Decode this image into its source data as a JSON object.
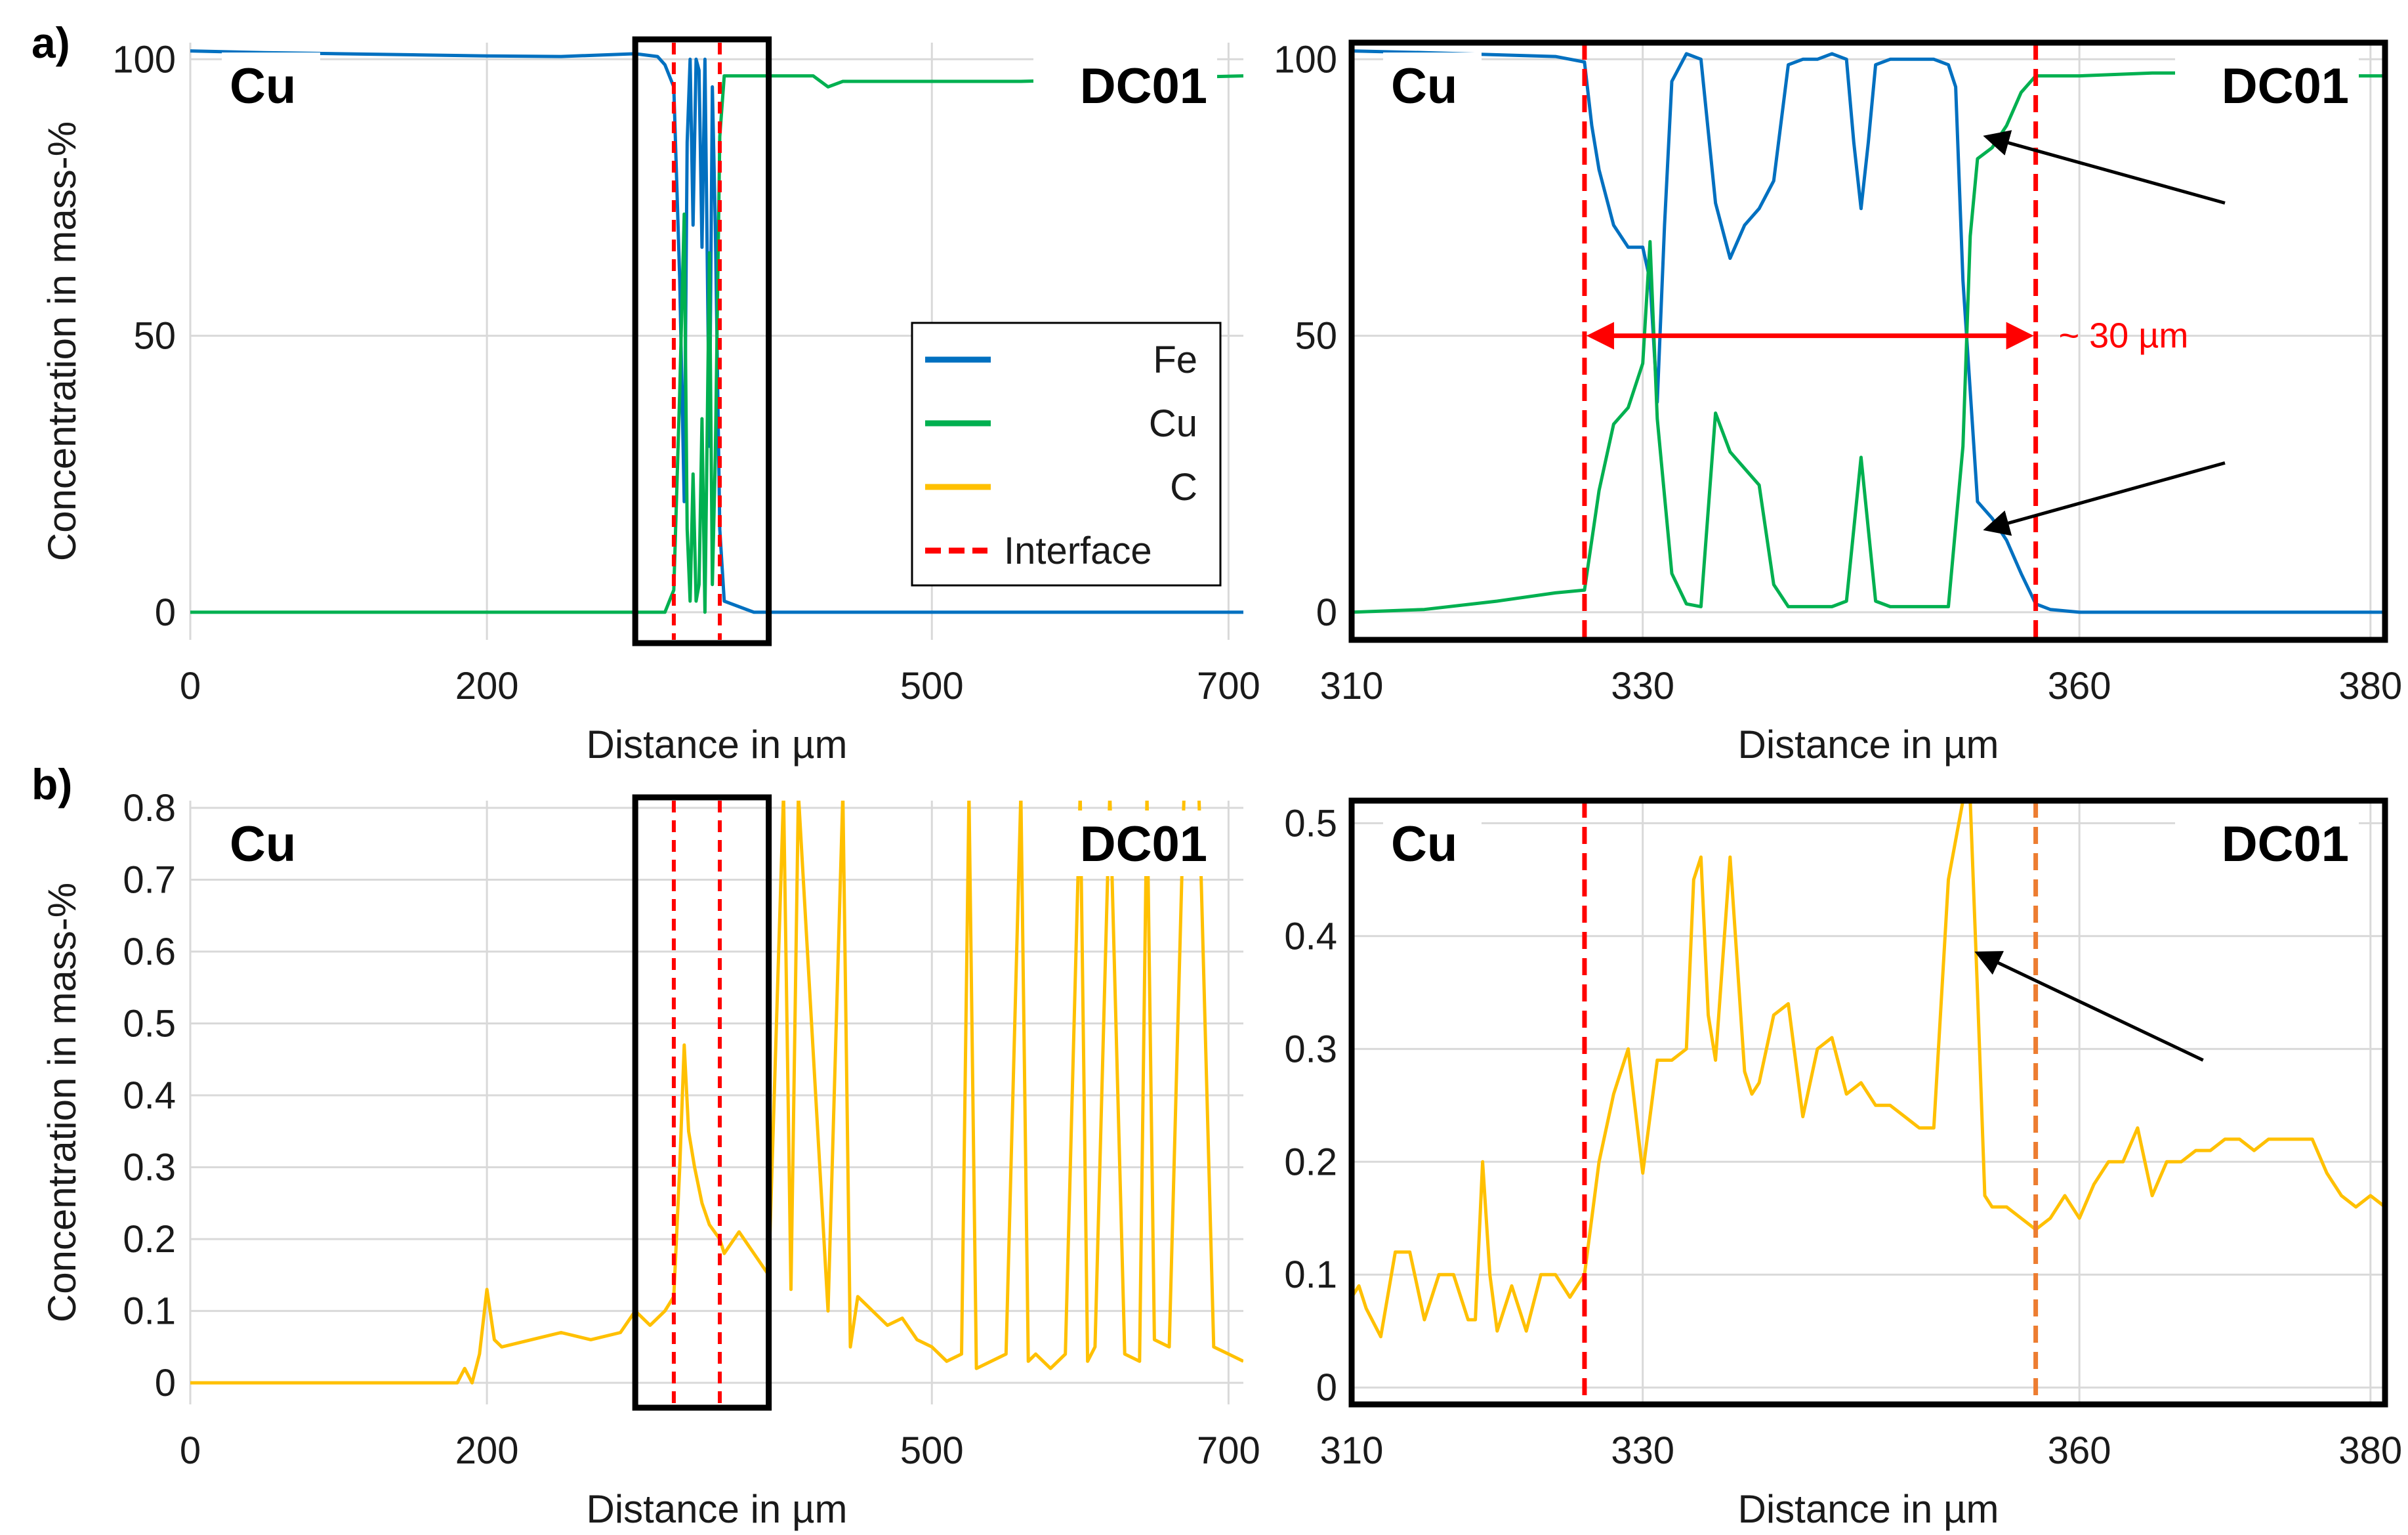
{
  "figure": {
    "panel_a_label": "a)",
    "panel_b_label": "b)",
    "y_label": "Concentration in mass-%",
    "x_label": "Distance in µm",
    "left_region_label": "Cu",
    "right_region_label": "DC01",
    "width_annotation": "~ 30 µm",
    "colors": {
      "Fe": "#0070c0",
      "Cu": "#00b050",
      "C": "#ffc000",
      "Interface": "#ff0000",
      "Interface2": "#ed7d31"
    }
  },
  "chart_data": [
    {
      "id": "a_left",
      "type": "line",
      "xlim": [
        0,
        710
      ],
      "ylim": [
        -5,
        103
      ],
      "xticks": [
        0,
        200,
        500,
        700
      ],
      "xtick_labels": [
        "0",
        "200",
        "500",
        "700"
      ],
      "yticks": [
        0,
        50,
        100
      ],
      "ytick_labels": [
        "0",
        "50",
        "100"
      ],
      "xlabel": "Distance in µm",
      "ylabel": "Concentration in mass-%",
      "legend": {
        "position": "center-right",
        "entries": [
          "Fe",
          "Cu",
          "C",
          "Interface"
        ]
      },
      "interfaces": [
        326,
        357
      ],
      "zoom_box": [
        300,
        390
      ],
      "series": [
        {
          "name": "Fe",
          "x": [
            0,
            50,
            100,
            150,
            200,
            250,
            300,
            315,
            320,
            326,
            330,
            333,
            335,
            337,
            339,
            341,
            343,
            345,
            347,
            350,
            352,
            354,
            357,
            360,
            380,
            500,
            710
          ],
          "y": [
            101.5,
            101.2,
            101.0,
            100.8,
            100.6,
            100.5,
            101.0,
            100.5,
            99.0,
            95,
            60,
            20,
            85,
            100,
            70,
            100,
            98,
            66,
            100,
            30,
            95,
            70,
            15,
            2,
            0,
            0,
            0
          ]
        },
        {
          "name": "Cu",
          "x": [
            0,
            200,
            320,
            326,
            330,
            333,
            335,
            337,
            339,
            341,
            343,
            345,
            347,
            350,
            352,
            354,
            357,
            360,
            380,
            420,
            430,
            440,
            500,
            560,
            710
          ],
          "y": [
            0,
            0,
            0,
            4,
            40,
            72,
            15,
            2,
            25,
            2,
            5,
            35,
            0,
            65,
            5,
            28,
            86,
            97,
            97,
            97,
            95,
            96,
            96,
            96,
            97
          ]
        }
      ]
    },
    {
      "id": "a_right",
      "type": "line",
      "xlim": [
        310,
        381
      ],
      "ylim": [
        -5,
        103
      ],
      "xticks": [
        310,
        330,
        360,
        380
      ],
      "xtick_labels": [
        "310",
        "330",
        "360",
        "380"
      ],
      "yticks": [
        0,
        50,
        100
      ],
      "ytick_labels": [
        "0",
        "50",
        "100"
      ],
      "xlabel": "Distance in µm",
      "interfaces": [
        326,
        357
      ],
      "series": [
        {
          "name": "Fe",
          "x": [
            310,
            315,
            320,
            324,
            326,
            326.5,
            327,
            328,
            329,
            330,
            330.5,
            331,
            331.5,
            332,
            333,
            334,
            335,
            336,
            337,
            338,
            339,
            340,
            341,
            342,
            343,
            344,
            344.5,
            345,
            345.5,
            346,
            347,
            348,
            349,
            350,
            351,
            351.5,
            352,
            352.5,
            353,
            354,
            355,
            356,
            357,
            358,
            360,
            370,
            381
          ],
          "y": [
            101.5,
            101.2,
            100.8,
            100.5,
            99.5,
            88,
            80,
            70,
            66,
            66,
            60,
            38,
            70,
            96,
            101,
            100,
            74,
            64,
            70,
            73,
            78,
            99,
            100,
            100,
            101,
            100,
            85,
            73,
            85,
            99,
            100,
            100,
            100,
            100,
            99,
            95,
            60,
            40,
            20,
            17,
            13,
            7,
            1.5,
            0.5,
            0,
            0,
            0
          ]
        },
        {
          "name": "Cu",
          "x": [
            310,
            315,
            320,
            324,
            326,
            327,
            328,
            329,
            330,
            330.5,
            331,
            332,
            333,
            334,
            335,
            336,
            337,
            338,
            339,
            340,
            341,
            342,
            343,
            344,
            344.5,
            345,
            345.5,
            346,
            347,
            348,
            349,
            350,
            351,
            352,
            352.5,
            353,
            354,
            355,
            356,
            357,
            358,
            360,
            365,
            370,
            375,
            381
          ],
          "y": [
            0,
            0.5,
            2,
            3.5,
            4,
            22,
            34,
            37,
            45,
            67,
            35,
            7,
            1.5,
            1,
            36,
            29,
            26,
            23,
            5,
            1,
            1,
            1,
            1,
            2,
            15,
            28,
            15,
            2,
            1,
            1,
            1,
            1,
            1,
            30,
            68,
            82,
            84,
            88,
            94,
            97,
            97,
            97,
            97.5,
            97.5,
            97,
            97
          ]
        }
      ]
    },
    {
      "id": "b_left",
      "type": "line",
      "xlim": [
        0,
        710
      ],
      "ylim": [
        -0.03,
        0.81
      ],
      "xticks": [
        0,
        200,
        500,
        700
      ],
      "xtick_labels": [
        "0",
        "200",
        "500",
        "700"
      ],
      "yticks": [
        0,
        0.1,
        0.2,
        0.3,
        0.4,
        0.5,
        0.6,
        0.7,
        0.8
      ],
      "ytick_labels": [
        "0",
        "0.1",
        "0.2",
        "0.3",
        "0.4",
        "0.5",
        "0.6",
        "0.7",
        "0.8"
      ],
      "xlabel": "Distance in µm",
      "ylabel": "Concentration in mass-%",
      "interfaces": [
        326,
        357
      ],
      "zoom_box": [
        300,
        390
      ],
      "series": [
        {
          "name": "C",
          "x": [
            0,
            180,
            185,
            190,
            195,
            200,
            205,
            210,
            230,
            250,
            270,
            290,
            300,
            310,
            320,
            326,
            330,
            333,
            336,
            340,
            345,
            350,
            357,
            360,
            370,
            380,
            390,
            400,
            405,
            410,
            430,
            440,
            445,
            450,
            470,
            480,
            490,
            500,
            510,
            520,
            525,
            530,
            540,
            550,
            560,
            565,
            570,
            580,
            590,
            600,
            605,
            610,
            620,
            630,
            640,
            645,
            650,
            660,
            670,
            680,
            690,
            700,
            710
          ],
          "y": [
            0,
            0,
            0.02,
            0,
            0.04,
            0.13,
            0.06,
            0.05,
            0.06,
            0.07,
            0.06,
            0.07,
            0.1,
            0.08,
            0.1,
            0.12,
            0.3,
            0.47,
            0.35,
            0.3,
            0.25,
            0.22,
            0.2,
            0.18,
            0.21,
            0.18,
            0.15,
            0.82,
            0.13,
            0.82,
            0.1,
            0.82,
            0.05,
            0.12,
            0.08,
            0.09,
            0.06,
            0.05,
            0.03,
            0.04,
            0.82,
            0.02,
            0.03,
            0.04,
            0.82,
            0.03,
            0.04,
            0.02,
            0.04,
            0.82,
            0.03,
            0.05,
            0.82,
            0.04,
            0.03,
            0.82,
            0.06,
            0.05,
            0.82,
            0.82,
            0.05,
            0.04,
            0.03
          ]
        }
      ]
    },
    {
      "id": "b_right",
      "type": "line",
      "xlim": [
        310,
        381
      ],
      "ylim": [
        -0.015,
        0.52
      ],
      "xticks": [
        310,
        330,
        360,
        380
      ],
      "xtick_labels": [
        "310",
        "330",
        "360",
        "380"
      ],
      "yticks": [
        0,
        0.1,
        0.2,
        0.3,
        0.4,
        0.5
      ],
      "ytick_labels": [
        "0",
        "0.1",
        "0.2",
        "0.3",
        "0.4",
        "0.5"
      ],
      "xlabel": "Distance in µm",
      "interfaces": [
        326,
        357
      ],
      "series": [
        {
          "name": "C",
          "x": [
            310,
            310.5,
            311,
            312,
            313,
            314,
            315,
            316,
            317,
            318,
            318.5,
            319,
            319.5,
            320,
            321,
            322,
            323,
            324,
            325,
            326,
            327,
            328,
            329,
            330,
            331,
            332,
            333,
            333.5,
            334,
            334.5,
            335,
            336,
            337,
            337.5,
            338,
            339,
            340,
            341,
            342,
            343,
            344,
            345,
            346,
            347,
            348,
            349,
            350,
            351,
            352,
            352.5,
            353,
            353.5,
            354,
            355,
            356,
            357,
            358,
            359,
            360,
            361,
            362,
            363,
            364,
            365,
            366,
            367,
            368,
            369,
            370,
            371,
            372,
            373,
            374,
            375,
            376,
            377,
            378,
            379,
            380,
            381
          ],
          "y": [
            0.08,
            0.09,
            0.07,
            0.045,
            0.12,
            0.12,
            0.06,
            0.1,
            0.1,
            0.06,
            0.06,
            0.2,
            0.1,
            0.05,
            0.09,
            0.05,
            0.1,
            0.1,
            0.08,
            0.1,
            0.2,
            0.26,
            0.3,
            0.19,
            0.29,
            0.29,
            0.3,
            0.45,
            0.47,
            0.33,
            0.29,
            0.47,
            0.28,
            0.26,
            0.27,
            0.33,
            0.34,
            0.24,
            0.3,
            0.31,
            0.26,
            0.27,
            0.25,
            0.25,
            0.24,
            0.23,
            0.23,
            0.45,
            0.52,
            0.52,
            0.35,
            0.17,
            0.16,
            0.16,
            0.15,
            0.14,
            0.15,
            0.17,
            0.15,
            0.18,
            0.2,
            0.2,
            0.23,
            0.17,
            0.2,
            0.2,
            0.21,
            0.21,
            0.22,
            0.22,
            0.21,
            0.22,
            0.22,
            0.22,
            0.22,
            0.19,
            0.17,
            0.16,
            0.17,
            0.16
          ]
        }
      ]
    }
  ]
}
